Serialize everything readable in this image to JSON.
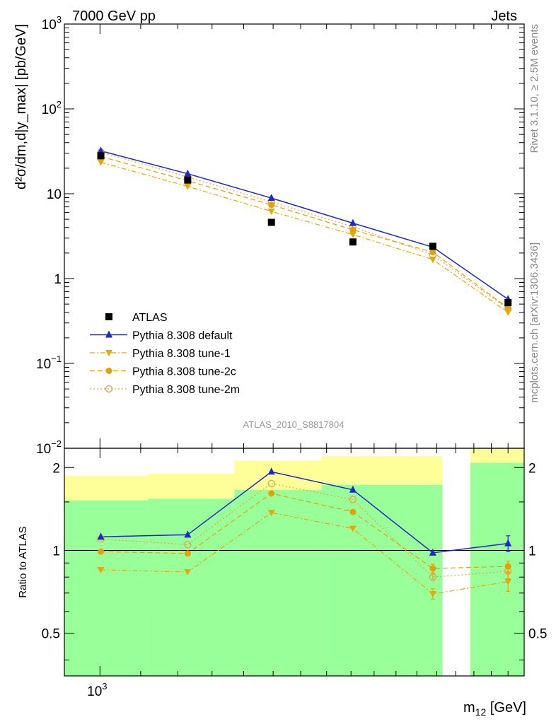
{
  "header": {
    "title_left": "7000 GeV pp",
    "title_right": "Jets",
    "side_top": "Rivet 3.1.10, ≥ 2.5M events",
    "side_bottom": "mcplots.cern.ch [arXiv:1306.3436]",
    "watermark": "ATLAS_2010_S8817804"
  },
  "chart_data": {
    "type": "line",
    "x_log": true,
    "y_log": true,
    "xlabel": "m",
    "xlabel_sub": "12",
    "xlabel_unit": " [GeV]",
    "ylabel": "d²σ/dm,d|y_max| [pb/GeV]",
    "xlim": [
      920,
      2700
    ],
    "ylim": [
      0.01,
      1000
    ],
    "x_ticks": [
      {
        "value": 1000,
        "label": "10",
        "sup": "3"
      }
    ],
    "y_ticks": [
      {
        "value": 1000,
        "label": "10",
        "sup": "3"
      },
      {
        "value": 100,
        "label": "10",
        "sup": "2"
      },
      {
        "value": 10,
        "label": "10",
        "sup": ""
      },
      {
        "value": 1,
        "label": "1",
        "sup": ""
      },
      {
        "value": 0.1,
        "label": "10",
        "sup": "−1"
      },
      {
        "value": 0.01,
        "label": "10",
        "sup": "−2"
      }
    ],
    "legend_position": "lower-left",
    "data_series": {
      "name": "ATLAS",
      "color": "#000000",
      "bins": [
        {
          "lo": 920,
          "hi": 1120,
          "x": 1002,
          "y": 28
        },
        {
          "lo": 1120,
          "hi": 1370,
          "x": 1228,
          "y": 14.5
        },
        {
          "lo": 1370,
          "hi": 1680,
          "x": 1494,
          "y": 4.6
        },
        {
          "lo": 1680,
          "hi": 2070,
          "x": 1808,
          "y": 2.7
        },
        {
          "lo": 2070,
          "hi": 2230,
          "x": 2180,
          "y": 2.4
        },
        {
          "lo": 2230,
          "hi": 2700,
          "x": 2600,
          "y": 0.52
        }
      ]
    },
    "series": [
      {
        "name": "Pythia 8.308 default",
        "color": "#1f27cc",
        "marker": "triangle-up",
        "line": "solid",
        "y": [
          32,
          17.2,
          8.9,
          4.5,
          2.35,
          0.57
        ]
      },
      {
        "name": "Pythia 8.308 tune-1",
        "color": "#e8a800",
        "marker": "triangle-down",
        "line": "dashdot",
        "y": [
          23.5,
          12.2,
          6.2,
          3.3,
          1.68,
          0.4
        ]
      },
      {
        "name": "Pythia 8.308 tune-2c",
        "color": "#e8a000",
        "marker": "circle-filled",
        "line": "dashed",
        "y": [
          27.5,
          14.2,
          7.4,
          3.75,
          2.05,
          0.45
        ]
      },
      {
        "name": "Pythia 8.308 tune-2m",
        "color": "#e8a040",
        "marker": "circle-open",
        "line": "dotted",
        "y": [
          31,
          15.7,
          8.0,
          4.1,
          1.9,
          0.44
        ]
      }
    ],
    "ratio": {
      "ylabel": "Ratio to ATLAS",
      "ylim": [
        0.35,
        2.35
      ],
      "y_ticks": [
        {
          "value": 0.5,
          "label": "0.5"
        },
        {
          "value": 1,
          "label": "1"
        },
        {
          "value": 2,
          "label": "2"
        }
      ],
      "band_inner": [
        {
          "lo": 920,
          "hi": 1120,
          "low": 0.0,
          "high": 1.52
        },
        {
          "lo": 1120,
          "hi": 1370,
          "low": 0.0,
          "high": 1.54
        },
        {
          "lo": 1370,
          "hi": 1680,
          "low": 0.0,
          "high": 1.66
        },
        {
          "lo": 1680,
          "hi": 2070,
          "low": 0.0,
          "high": 1.73
        },
        {
          "lo": 2070,
          "hi": 2230,
          "low": 0.0,
          "high": 1.73
        },
        {
          "lo": 2380,
          "hi": 2700,
          "low": 0.0,
          "high": 2.08
        }
      ],
      "band_outer": [
        {
          "lo": 920,
          "hi": 1120,
          "low": 0.57,
          "high": 1.87
        },
        {
          "lo": 1120,
          "hi": 1370,
          "low": 0.54,
          "high": 1.9
        },
        {
          "lo": 1370,
          "hi": 1680,
          "low": 0.36,
          "high": 2.12
        },
        {
          "lo": 1680,
          "hi": 2070,
          "low": 0.36,
          "high": 2.2
        },
        {
          "lo": 2070,
          "hi": 2230,
          "low": 0.0,
          "high": 2.2
        },
        {
          "lo": 2380,
          "hi": 2700,
          "low": 0.0,
          "high": 3.0
        }
      ],
      "series": [
        {
          "name": "Pythia 8.308 default",
          "y": [
            1.12,
            1.14,
            1.93,
            1.66,
            0.98,
            1.06
          ],
          "err": [
            0,
            0,
            0,
            0,
            0,
            0.07
          ]
        },
        {
          "name": "Pythia 8.308 tune-1",
          "y": [
            0.85,
            0.835,
            1.37,
            1.2,
            0.695,
            0.77
          ],
          "err": [
            0,
            0,
            0,
            0,
            0.03,
            0.06
          ]
        },
        {
          "name": "Pythia 8.308 tune-2c",
          "y": [
            0.99,
            0.975,
            1.61,
            1.38,
            0.86,
            0.875
          ],
          "err": [
            0,
            0,
            0,
            0,
            0.03,
            0.04
          ]
        },
        {
          "name": "Pythia 8.308 tune-2m",
          "y": [
            1.1,
            1.05,
            1.75,
            1.53,
            0.8,
            0.84
          ],
          "err": [
            0,
            0,
            0,
            0,
            0.02,
            0.05
          ]
        }
      ]
    }
  }
}
